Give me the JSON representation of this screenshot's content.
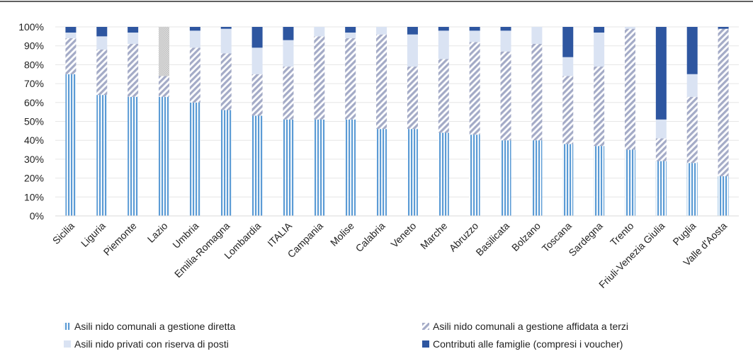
{
  "chart_data": {
    "type": "bar",
    "stacked": true,
    "percent": true,
    "y_ticks": [
      "0%",
      "10%",
      "20%",
      "30%",
      "40%",
      "50%",
      "60%",
      "70%",
      "80%",
      "90%",
      "100%"
    ],
    "ylim": [
      0,
      100
    ],
    "categories": [
      "Sicilia",
      "Liguria",
      "Piemonte",
      "Lazio",
      "Umbria",
      "Emilia-Romagna",
      "Lombardia",
      "ITALIA",
      "Campania",
      "Molise",
      "Calabria",
      "Veneto",
      "Marche",
      "Abruzzo",
      "Basilicata",
      "Bolzano",
      "Toscana",
      "Sardegna",
      "Trento",
      "Friuli-Venezia Giulia",
      "Puglia",
      "Valle d'Aosta"
    ],
    "series": [
      {
        "name": "Asili nido comunali a gestione diretta",
        "color": "#5b9bd5",
        "pattern": "vertical-stripes",
        "values": [
          75,
          64,
          63,
          63,
          60,
          56,
          53,
          51,
          51,
          51,
          46,
          46,
          44,
          43,
          40,
          40,
          38,
          37,
          35,
          29,
          28,
          21
        ]
      },
      {
        "name": "Asili nido comunali a gestione affidata a terzi",
        "color": "#a4abc7",
        "pattern": "diagonal-stripes",
        "values": [
          19,
          24,
          28,
          11,
          29,
          30,
          22,
          28,
          44,
          43,
          50,
          33,
          39,
          49,
          47,
          51,
          36,
          42,
          64,
          12,
          35,
          78
        ]
      },
      {
        "name": "Asili nido privati con riserva di posti",
        "color": "#dae3f3",
        "pattern": "solid",
        "values": [
          3,
          7,
          6,
          26,
          9,
          13,
          14,
          14,
          5,
          3,
          4,
          17,
          15,
          6,
          11,
          9,
          10,
          18,
          1,
          10,
          12,
          0
        ]
      },
      {
        "name": "Contributi alle famiglie (compresi i voucher)",
        "color": "#2e56a0",
        "pattern": "solid",
        "values": [
          3,
          5,
          3,
          0,
          2,
          1,
          11,
          7,
          1,
          3,
          0,
          4,
          2,
          2,
          2,
          0,
          16,
          3,
          0,
          49,
          25,
          1
        ]
      }
    ],
    "lazio_note_color": "#c8c8c8",
    "legend_position": "bottom"
  }
}
